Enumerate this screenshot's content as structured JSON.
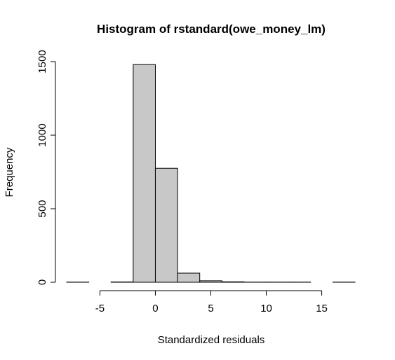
{
  "chart_data": {
    "type": "bar",
    "title": "Histogram of rstandard(owe_money_lm)",
    "xlabel": "Standardized residuals",
    "ylabel": "Frequency",
    "xlim": [
      -8,
      18
    ],
    "ylim": [
      0,
      1500
    ],
    "x_ticks": [
      -5,
      0,
      5,
      10,
      15
    ],
    "y_ticks": [
      0,
      500,
      1000,
      1500
    ],
    "grid": false,
    "bar_color": "#c8c8c8",
    "bins": [
      {
        "from": -8,
        "to": -6,
        "count": 1
      },
      {
        "from": -6,
        "to": -4,
        "count": 0
      },
      {
        "from": -4,
        "to": -2,
        "count": 2
      },
      {
        "from": -2,
        "to": 0,
        "count": 1480
      },
      {
        "from": 0,
        "to": 2,
        "count": 775
      },
      {
        "from": 2,
        "to": 4,
        "count": 62
      },
      {
        "from": 4,
        "to": 6,
        "count": 10
      },
      {
        "from": 6,
        "to": 8,
        "count": 3
      },
      {
        "from": 8,
        "to": 10,
        "count": 1
      },
      {
        "from": 10,
        "to": 12,
        "count": 1
      },
      {
        "from": 12,
        "to": 14,
        "count": 1
      },
      {
        "from": 14,
        "to": 16,
        "count": 0
      },
      {
        "from": 16,
        "to": 18,
        "count": 1
      }
    ]
  }
}
